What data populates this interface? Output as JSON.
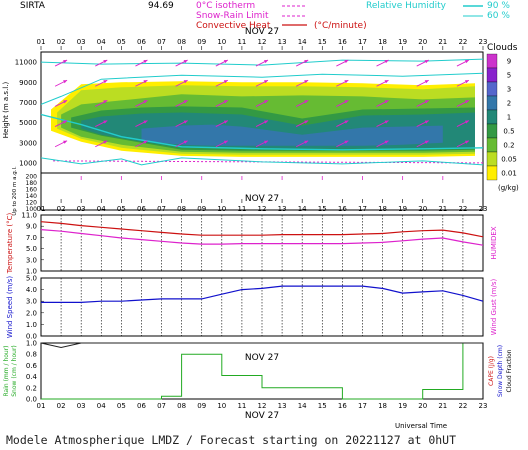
{
  "header": {
    "station": "SIRTA",
    "station_value": "94.69",
    "legend_isotherm": "0°C isotherm",
    "legend_isotherm_color": "#dd22cc",
    "legend_snowrain": "Snow-Rain Limit",
    "legend_snowrain_color": "#dd22cc",
    "legend_convective": "Convective Heat",
    "legend_convective_color": "#cc1111",
    "legend_convective_unit": "(°C/minute)",
    "legend_rh_label": "Relative Humidity",
    "legend_rh_90": "90 %",
    "legend_rh_60": "60 %",
    "legend_rh_color": "#22cccc"
  },
  "hours": [
    "01",
    "02",
    "03",
    "04",
    "05",
    "06",
    "07",
    "08",
    "09",
    "10",
    "11",
    "12",
    "13",
    "14",
    "15",
    "16",
    "17",
    "18",
    "19",
    "20",
    "21",
    "22",
    "23"
  ],
  "date_label": "NOV 27",
  "xlabel_bottom": "Universal Time",
  "footer": "Modele Atmospherique LMDZ / Forecast starting on 20221127 at 0hUT",
  "chart_data": [
    {
      "type": "heatmap",
      "title": "Clouds",
      "ylabel": "Height (m a.s.l.)",
      "ylabel_low": "Up to 200 m a.g.l.",
      "yticks_high": [
        "11000",
        "9000",
        "7000",
        "5000",
        "3000",
        "1000"
      ],
      "yticks_low": [
        "200",
        "180",
        "160",
        "140",
        "120",
        "100"
      ],
      "colorbar_title": "Clouds",
      "colorbar_unit": "(g/kg)",
      "colorbar_levels": [
        "9",
        "5",
        "3",
        "2",
        "1",
        "0.5",
        "0.2",
        "0.05",
        "0.01"
      ],
      "colorbar_colors": [
        "#cc33cc",
        "#8822cc",
        "#5566cc",
        "#3377aa",
        "#228877",
        "#339944",
        "#66bb33",
        "#bbdd22",
        "#ffee00"
      ],
      "cloud_bands": [
        {
          "level": "0.01",
          "color": "#ffee00",
          "x": [
            1.5,
            3,
            5,
            8,
            11,
            14,
            17,
            20,
            22.6
          ],
          "top": [
            6300,
            8800,
            9000,
            9100,
            9000,
            9000,
            8900,
            8700,
            8900
          ],
          "bottom": [
            4200,
            3100,
            2200,
            1700,
            1600,
            1600,
            1600,
            1600,
            1700
          ]
        },
        {
          "level": "0.05",
          "color": "#bbdd22",
          "x": [
            1.8,
            3,
            5,
            8,
            11,
            14,
            17,
            20,
            22.6
          ],
          "top": [
            6000,
            8200,
            8500,
            8700,
            8600,
            8600,
            8500,
            8300,
            8600
          ],
          "bottom": [
            4400,
            3400,
            2500,
            1900,
            1800,
            1800,
            1800,
            1800,
            1900
          ]
        },
        {
          "level": "0.2",
          "color": "#66bb33",
          "x": [
            2,
            3,
            5,
            8,
            11,
            14,
            17,
            20,
            22.6
          ],
          "top": [
            5800,
            6800,
            7200,
            7800,
            7600,
            7700,
            7600,
            7300,
            7500
          ],
          "bottom": [
            4500,
            3600,
            2800,
            2100,
            2000,
            2000,
            2000,
            2000,
            2100
          ]
        },
        {
          "level": "0.5",
          "color": "#339944",
          "x": [
            2.5,
            4,
            6,
            8,
            11,
            14,
            17,
            20,
            22.6
          ],
          "top": [
            5500,
            6200,
            6500,
            6600,
            6500,
            5400,
            6300,
            6400,
            6500
          ],
          "bottom": [
            4500,
            3700,
            3000,
            2300,
            2200,
            2200,
            2200,
            2200,
            2300
          ]
        },
        {
          "level": "1",
          "color": "#228877",
          "x": [
            3,
            4,
            6,
            8,
            11,
            14,
            17,
            20,
            22.6
          ],
          "top": [
            5200,
            5600,
            5900,
            6000,
            5800,
            4700,
            5700,
            5800,
            6000
          ],
          "bottom": [
            4400,
            3800,
            3100,
            2500,
            2400,
            2400,
            2400,
            2400,
            2500
          ]
        },
        {
          "level": "2",
          "color": "#3377aa",
          "x": [
            6,
            8,
            9.5,
            11,
            14,
            17,
            19,
            21
          ],
          "top": [
            4400,
            4700,
            4800,
            4600,
            3800,
            4500,
            4600,
            4700
          ],
          "bottom": [
            3200,
            2800,
            2700,
            2700,
            2700,
            2700,
            2800,
            3000
          ]
        }
      ],
      "isotherm_0c_m": 1200,
      "wind_vectors_note": "magenta arrows"
    },
    {
      "type": "line",
      "ylabel": "Temperature (°C)",
      "ylabel_right": "HUMIDEX",
      "yticks": [
        "11.0",
        "9.0",
        "7.0",
        "5.0",
        "3.0",
        "1.0"
      ],
      "ylim": [
        1.0,
        11.0
      ],
      "series": [
        {
          "name": "Temperature",
          "color": "#cc1111",
          "values": [
            9.8,
            9.5,
            9.1,
            8.8,
            8.5,
            8.2,
            7.9,
            7.6,
            7.4,
            7.4,
            7.4,
            7.4,
            7.5,
            7.5,
            7.5,
            7.5,
            7.6,
            7.7,
            8.0,
            8.2,
            8.3,
            7.8,
            7.1
          ]
        },
        {
          "name": "HUMIDEX",
          "color": "#dd22cc",
          "values": [
            8.4,
            8.1,
            7.7,
            7.3,
            6.9,
            6.6,
            6.3,
            6.0,
            5.8,
            5.8,
            5.9,
            5.9,
            5.9,
            5.9,
            5.9,
            5.9,
            6.0,
            6.1,
            6.4,
            6.7,
            6.9,
            6.2,
            5.6
          ]
        }
      ]
    },
    {
      "type": "line",
      "ylabel": "Wind Speed (m/s)",
      "ylabel_right": "Wind Gust (m/s)",
      "yticks": [
        "5.0",
        "4.0",
        "3.0",
        "2.0",
        "1.0",
        "0.0"
      ],
      "ylim": [
        0.0,
        5.0
      ],
      "series": [
        {
          "name": "Wind Speed",
          "color": "#1111cc",
          "values": [
            2.9,
            2.9,
            2.9,
            3.0,
            3.0,
            3.1,
            3.2,
            3.2,
            3.2,
            3.6,
            4.0,
            4.1,
            4.3,
            4.3,
            4.3,
            4.3,
            4.3,
            4.1,
            3.7,
            3.8,
            3.9,
            3.5,
            3.0
          ]
        }
      ]
    },
    {
      "type": "bar",
      "ylabel": "Rain (mm / hour)",
      "ylabel2": "Snow (cm / hour)",
      "ylabel_right": "CAPE (J/g)",
      "ylabel_right2": "Snow Depth (cm)",
      "ylabel_right3": "Cloud Fraction",
      "yticks": [
        "1.0",
        "0.8",
        "0.6",
        "0.4",
        "0.2",
        "0.0"
      ],
      "ylim": [
        0.0,
        1.0
      ],
      "series": [
        {
          "name": "Rain",
          "color": "#22aa22",
          "values": [
            0,
            0,
            0,
            0,
            0,
            0,
            0.05,
            0.8,
            0.8,
            0.42,
            0.42,
            0.2,
            0.2,
            0.2,
            0.2,
            0,
            0,
            0,
            0,
            0.17,
            0.17,
            1.0,
            1.0
          ]
        },
        {
          "name": "Cloud Fraction",
          "color": "#222222",
          "values": [
            1.0,
            0.92,
            1.0,
            1.0,
            1.0,
            1.0,
            1.0,
            1.0,
            1.0,
            1.0,
            1.0,
            1.0,
            1.0,
            1.0,
            1.0,
            1.0,
            1.0,
            1.0,
            1.0,
            1.0,
            1.0,
            1.0,
            1.0
          ]
        }
      ]
    }
  ]
}
